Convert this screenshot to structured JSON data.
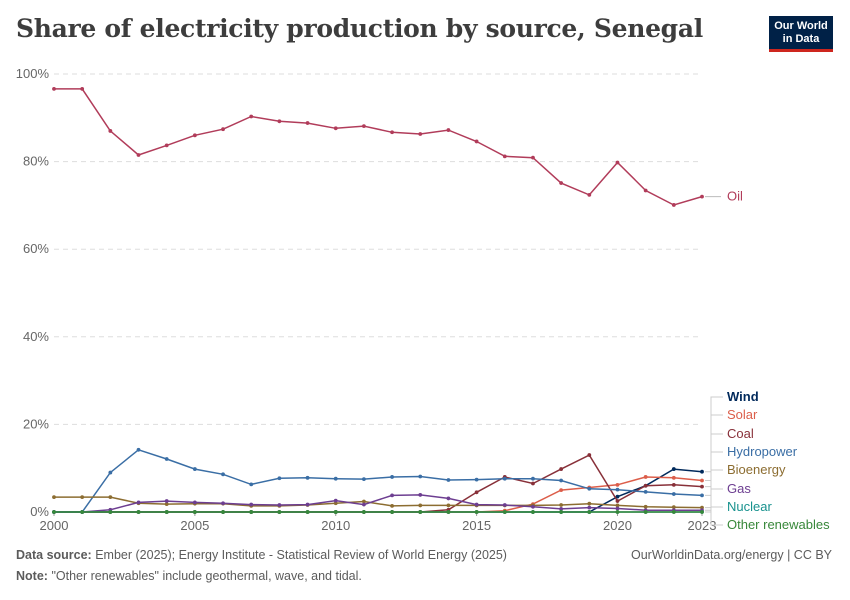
{
  "header": {
    "title": "Share of electricity production by source, Senegal",
    "logo_line1": "Our World",
    "logo_line2": "in Data"
  },
  "footer": {
    "source_label": "Data source:",
    "source_text": "Ember (2025); Energy Institute - Statistical Review of World Energy (2025)",
    "url": "OurWorldinData.org/energy | CC BY",
    "note_label": "Note:",
    "note_text": "\"Other renewables\" include geothermal, wave, and tidal."
  },
  "chart_data": {
    "type": "line",
    "x_ticks": [
      "2000",
      "2005",
      "2010",
      "2015",
      "2020",
      "2023"
    ],
    "y_ticks": [
      "0%",
      "20%",
      "40%",
      "60%",
      "80%",
      "100%"
    ],
    "xlim": [
      2000,
      2023
    ],
    "ylim": [
      0,
      100
    ],
    "grid": "horizontal dashed",
    "legend": "right, inline labels",
    "series": [
      {
        "name": "Oil",
        "color": "#b13c5a",
        "x": [
          2000,
          2001,
          2002,
          2003,
          2004,
          2005,
          2006,
          2007,
          2008,
          2009,
          2010,
          2011,
          2012,
          2013,
          2014,
          2015,
          2016,
          2017,
          2018,
          2019,
          2020,
          2021,
          2022,
          2023
        ],
        "values": [
          96.6,
          96.6,
          87.0,
          81.5,
          83.7,
          86.0,
          87.4,
          90.3,
          89.2,
          88.8,
          87.6,
          88.1,
          86.7,
          86.3,
          87.2,
          84.6,
          81.2,
          80.9,
          75.1,
          72.4,
          79.8,
          73.4,
          70.1,
          72.0
        ]
      },
      {
        "name": "Wind",
        "color": "#00295b",
        "x": [
          2000,
          2001,
          2002,
          2003,
          2004,
          2005,
          2006,
          2007,
          2008,
          2009,
          2010,
          2011,
          2012,
          2013,
          2014,
          2015,
          2016,
          2017,
          2018,
          2019,
          2020,
          2021,
          2022,
          2023
        ],
        "values": [
          0,
          0,
          0,
          0,
          0,
          0,
          0,
          0,
          0,
          0,
          0,
          0,
          0,
          0,
          0,
          0,
          0,
          0,
          0,
          0,
          3.5,
          6.0,
          9.8,
          9.2
        ]
      },
      {
        "name": "Solar",
        "color": "#dc5e4a",
        "x": [
          2000,
          2001,
          2002,
          2003,
          2004,
          2005,
          2006,
          2007,
          2008,
          2009,
          2010,
          2011,
          2012,
          2013,
          2014,
          2015,
          2016,
          2017,
          2018,
          2019,
          2020,
          2021,
          2022,
          2023
        ],
        "values": [
          0,
          0,
          0,
          0,
          0,
          0,
          0,
          0,
          0,
          0,
          0,
          0,
          0,
          0,
          0,
          0,
          0.3,
          1.8,
          5.0,
          5.6,
          6.2,
          8.0,
          7.8,
          7.2
        ]
      },
      {
        "name": "Coal",
        "color": "#883039",
        "x": [
          2000,
          2001,
          2002,
          2003,
          2004,
          2005,
          2006,
          2007,
          2008,
          2009,
          2010,
          2011,
          2012,
          2013,
          2014,
          2015,
          2016,
          2017,
          2018,
          2019,
          2020,
          2021,
          2022,
          2023
        ],
        "values": [
          0,
          0,
          0,
          0,
          0,
          0,
          0,
          0,
          0,
          0,
          0,
          0,
          0,
          0,
          0.5,
          4.5,
          8.0,
          6.5,
          9.8,
          13.0,
          2.5,
          6.0,
          6.2,
          5.8
        ]
      },
      {
        "name": "Hydropower",
        "color": "#3a6ea5",
        "x": [
          2000,
          2001,
          2002,
          2003,
          2004,
          2005,
          2006,
          2007,
          2008,
          2009,
          2010,
          2011,
          2012,
          2013,
          2014,
          2015,
          2016,
          2017,
          2018,
          2019,
          2020,
          2021,
          2022,
          2023
        ],
        "values": [
          0,
          0,
          9.0,
          14.2,
          12.1,
          9.8,
          8.6,
          6.3,
          7.7,
          7.8,
          7.6,
          7.5,
          8.0,
          8.1,
          7.3,
          7.4,
          7.6,
          7.6,
          7.2,
          5.3,
          5.1,
          4.6,
          4.1,
          3.8
        ]
      },
      {
        "name": "Bioenergy",
        "color": "#8c6d31",
        "x": [
          2000,
          2001,
          2002,
          2003,
          2004,
          2005,
          2006,
          2007,
          2008,
          2009,
          2010,
          2011,
          2012,
          2013,
          2014,
          2015,
          2016,
          2017,
          2018,
          2019,
          2020,
          2021,
          2022,
          2023
        ],
        "values": [
          3.4,
          3.4,
          3.4,
          2.0,
          1.8,
          1.9,
          1.9,
          1.4,
          1.4,
          1.6,
          2.0,
          2.4,
          1.4,
          1.5,
          1.5,
          1.5,
          1.5,
          1.5,
          1.6,
          1.9,
          1.5,
          1.2,
          1.1,
          1.0
        ]
      },
      {
        "name": "Gas",
        "color": "#6d3e91",
        "x": [
          2000,
          2001,
          2002,
          2003,
          2004,
          2005,
          2006,
          2007,
          2008,
          2009,
          2010,
          2011,
          2012,
          2013,
          2014,
          2015,
          2016,
          2017,
          2018,
          2019,
          2020,
          2021,
          2022,
          2023
        ],
        "values": [
          0,
          0,
          0.5,
          2.2,
          2.5,
          2.2,
          2.0,
          1.7,
          1.6,
          1.7,
          2.6,
          1.7,
          3.8,
          3.9,
          3.1,
          1.7,
          1.6,
          1.2,
          0.7,
          1.0,
          0.8,
          0.4,
          0.4,
          0.4
        ]
      },
      {
        "name": "Nuclear",
        "color": "#18928e",
        "x": [
          2000,
          2001,
          2002,
          2003,
          2004,
          2005,
          2006,
          2007,
          2008,
          2009,
          2010,
          2011,
          2012,
          2013,
          2014,
          2015,
          2016,
          2017,
          2018,
          2019,
          2020,
          2021,
          2022,
          2023
        ],
        "values": [
          0,
          0,
          0,
          0,
          0,
          0,
          0,
          0,
          0,
          0,
          0,
          0,
          0,
          0,
          0,
          0,
          0,
          0,
          0,
          0,
          0,
          0,
          0,
          0
        ]
      },
      {
        "name": "Other renewables",
        "color": "#38883a",
        "x": [
          2000,
          2001,
          2002,
          2003,
          2004,
          2005,
          2006,
          2007,
          2008,
          2009,
          2010,
          2011,
          2012,
          2013,
          2014,
          2015,
          2016,
          2017,
          2018,
          2019,
          2020,
          2021,
          2022,
          2023
        ],
        "values": [
          0,
          0,
          0,
          0,
          0,
          0,
          0,
          0,
          0,
          0,
          0,
          0,
          0,
          0,
          0,
          0,
          0,
          0,
          0,
          0,
          0,
          0,
          0,
          0
        ]
      }
    ]
  }
}
